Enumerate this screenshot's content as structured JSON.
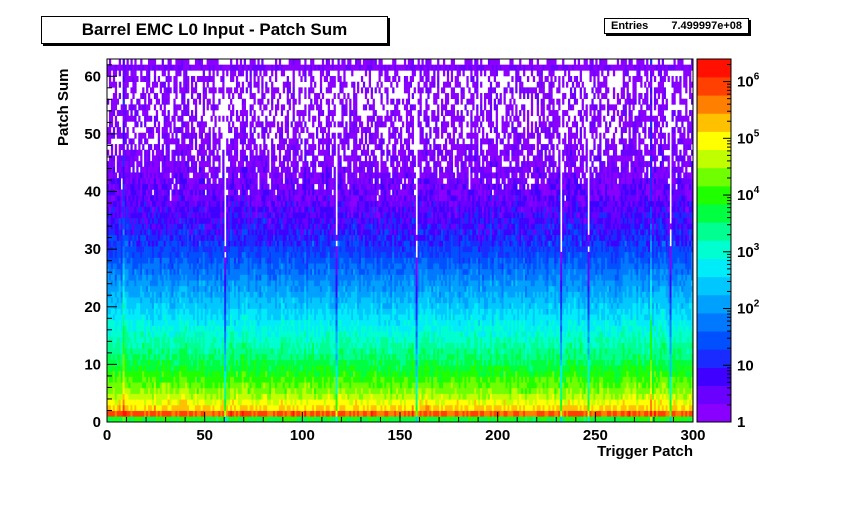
{
  "chart_data": {
    "type": "heatmap",
    "title": "Barrel EMC L0 Input - Patch Sum",
    "stats": {
      "label": "Entries",
      "value": "7.499997e+08"
    },
    "xlabel": "Trigger Patch",
    "ylabel": "Patch Sum",
    "xlim": [
      0,
      300
    ],
    "ylim": [
      0,
      63
    ],
    "x_ticks": [
      0,
      50,
      100,
      150,
      200,
      250,
      300
    ],
    "y_ticks": [
      0,
      10,
      20,
      30,
      40,
      50,
      60
    ],
    "z_scale": "log",
    "z_range": [
      1,
      2500000
    ],
    "z_tick_labels": [
      {
        "value": 1,
        "base": "1",
        "exp": ""
      },
      {
        "value": 10,
        "base": "10",
        "exp": ""
      },
      {
        "value": 100,
        "base": "10",
        "exp": "2"
      },
      {
        "value": 1000,
        "base": "10",
        "exp": "3"
      },
      {
        "value": 10000,
        "base": "10",
        "exp": "4"
      },
      {
        "value": 100000,
        "base": "10",
        "exp": "5"
      },
      {
        "value": 1000000,
        "base": "10",
        "exp": "6"
      }
    ],
    "palette_bands": 20,
    "bins_x": 300,
    "bins_y": 64,
    "profile": {
      "bin_counts": [
        {
          "y": 0,
          "count": 20
        },
        {
          "y": 1,
          "count": 2000000
        },
        {
          "y": 2,
          "count": 200000
        },
        {
          "y": 5,
          "count": 30000
        },
        {
          "y": 10,
          "count": 5000
        },
        {
          "y": 15,
          "count": 1200
        },
        {
          "y": 20,
          "count": 300
        },
        {
          "y": 25,
          "count": 80
        },
        {
          "y": 30,
          "count": 20
        },
        {
          "y": 35,
          "count": 7
        },
        {
          "y": 40,
          "count": 3
        },
        {
          "y": 45,
          "count": 1.6
        },
        {
          "y": 50,
          "count": 1.2
        },
        {
          "y": 55,
          "count": 1.0
        },
        {
          "y": 62,
          "count": 0.9
        }
      ],
      "overflow_bin": {
        "y": 62,
        "count": 2
      }
    },
    "special_columns": [
      {
        "x": 8,
        "note": "hot"
      },
      {
        "x": 60,
        "note": "cold"
      },
      {
        "x": 117,
        "note": "cold"
      },
      {
        "x": 158,
        "note": "cold"
      },
      {
        "x": 232,
        "note": "cold"
      },
      {
        "x": 246,
        "note": "cold"
      },
      {
        "x": 278,
        "note": "hot"
      },
      {
        "x": 288,
        "note": "cold"
      }
    ]
  }
}
